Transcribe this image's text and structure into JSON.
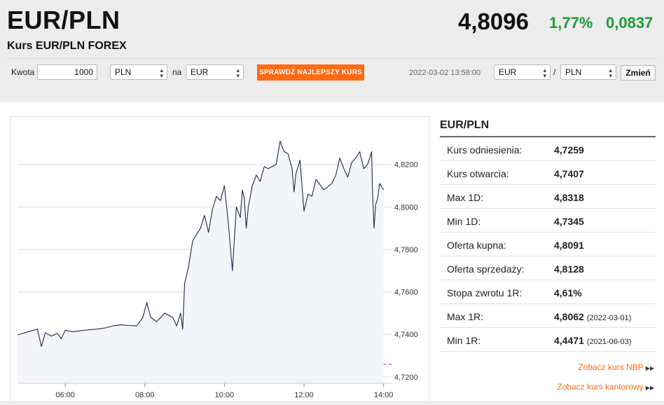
{
  "header": {
    "pair": "EUR/PLN",
    "subtitle": "Kurs EUR/PLN FOREX",
    "rate": "4,8096",
    "change_pct": "1,77%",
    "change_abs": "0,0837"
  },
  "toolbar": {
    "amount_label": "Kwota",
    "amount_value": "1000",
    "from_currency": "PLN",
    "to_label": "na",
    "to_currency": "EUR",
    "best_rate_button": "SPRAWDŹ NAJLEPSZY KURS",
    "timestamp": "2022-03-02 13:58:00",
    "pair_base": "EUR",
    "separator": "/",
    "pair_quote": "PLN",
    "change_button": "Zmień"
  },
  "chart_data": {
    "type": "line",
    "x_ticks": [
      "06:00",
      "08:00",
      "10:00",
      "12:00",
      "14:00"
    ],
    "y_ticks": [
      "4,8200",
      "4,8000",
      "4,7800",
      "4,7600",
      "4,7400",
      "4,7200"
    ],
    "ylim": [
      4.717,
      4.839
    ],
    "xlim": [
      4.8,
      14.2
    ],
    "reference_line": 4.7259,
    "reference_color": "#e84a4a",
    "line_color": "#1b2a4a",
    "fill_color": "#f3f5f8",
    "grid": true,
    "series": [
      {
        "x": [
          4.8,
          5.3,
          5.4,
          5.5,
          5.65,
          5.8,
          5.9,
          6.0,
          6.2,
          6.4,
          6.6,
          6.8,
          7.0,
          7.2,
          7.4,
          7.6,
          7.8,
          7.95,
          8.05,
          8.15,
          8.3,
          8.5,
          8.7,
          8.8,
          8.9,
          8.95,
          9.0,
          9.1,
          9.2,
          9.4,
          9.5,
          9.6,
          9.7,
          9.8,
          9.9,
          10.0,
          10.1,
          10.2,
          10.3,
          10.4,
          10.45,
          10.5,
          10.55,
          10.6,
          10.7,
          10.8,
          10.9,
          11.0,
          11.1,
          11.3,
          11.4,
          11.5,
          11.6,
          11.7,
          11.75,
          11.8,
          11.9,
          12.0,
          12.1,
          12.2,
          12.3,
          12.5,
          12.7,
          12.8,
          12.9,
          13.0,
          13.1,
          13.2,
          13.3,
          13.4,
          13.5,
          13.6,
          13.7,
          13.72,
          13.76,
          13.8,
          13.85,
          13.9,
          14.0
        ],
        "y": [
          4.7398,
          4.7425,
          4.7343,
          4.7408,
          4.7392,
          4.7405,
          4.738,
          4.742,
          4.7412,
          4.7418,
          4.7422,
          4.7425,
          4.743,
          4.744,
          4.7445,
          4.7442,
          4.744,
          4.748,
          4.755,
          4.748,
          4.746,
          4.75,
          4.748,
          4.744,
          4.75,
          4.7425,
          4.764,
          4.772,
          4.784,
          4.79,
          4.796,
          4.788,
          4.799,
          4.805,
          4.803,
          4.81,
          4.792,
          4.77,
          4.8,
          4.795,
          4.808,
          4.804,
          4.79,
          4.8,
          4.81,
          4.815,
          4.812,
          4.819,
          4.818,
          4.82,
          4.831,
          4.826,
          4.825,
          4.818,
          4.807,
          4.816,
          4.822,
          4.798,
          4.806,
          4.805,
          4.813,
          4.808,
          4.811,
          4.815,
          4.823,
          4.818,
          4.814,
          4.821,
          4.823,
          4.826,
          4.818,
          4.82,
          4.826,
          4.809,
          4.79,
          4.801,
          4.804,
          4.811,
          4.808
        ]
      }
    ]
  },
  "panel": {
    "title": "EUR/PLN",
    "rows": [
      {
        "label": "Kurs odniesienia:",
        "value": "4,7259",
        "date": ""
      },
      {
        "label": "Kurs otwarcia:",
        "value": "4,7407",
        "date": ""
      },
      {
        "label": "Max 1D:",
        "value": "4,8318",
        "date": ""
      },
      {
        "label": "Min 1D:",
        "value": "4,7345",
        "date": ""
      },
      {
        "label": "Oferta kupna:",
        "value": "4,8091",
        "date": ""
      },
      {
        "label": "Oferta sprzedaży:",
        "value": "4,8128",
        "date": ""
      },
      {
        "label": "Stopa zwrotu 1R:",
        "value": "4,61%",
        "date": ""
      },
      {
        "label": "Max 1R:",
        "value": "4,8062",
        "date": "(2022-03-01)"
      },
      {
        "label": "Min 1R:",
        "value": "4,4471",
        "date": "(2021-06-03)"
      }
    ],
    "link_nbp": "Zobacz kurs NBP",
    "link_kantor": "Zobacz kurs kantorowy"
  }
}
